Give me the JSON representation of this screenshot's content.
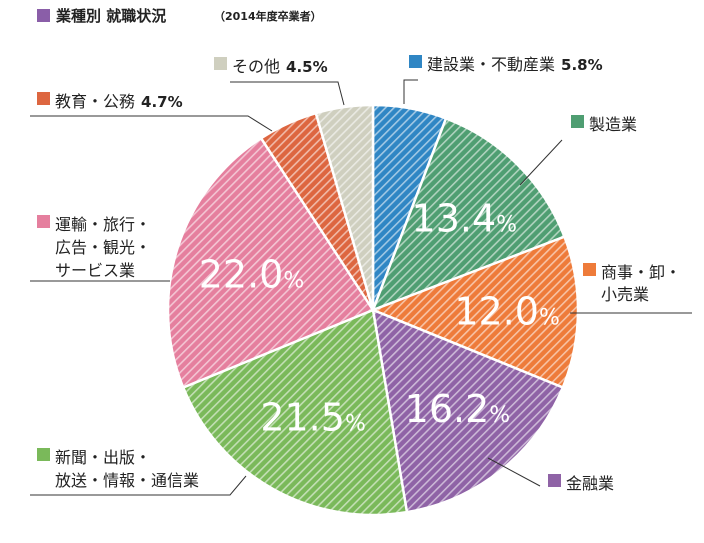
{
  "title": "業種別 就職状況",
  "subtitle": "（2014年度卒業者）",
  "colors": {
    "title_square": "#8a5ea8"
  },
  "chart_data": {
    "type": "pie",
    "title": "業種別 就職状況",
    "subtitle": "（2014年度卒業者）",
    "unit": "%",
    "start": "12 o'clock",
    "direction": "clockwise",
    "slices": [
      {
        "label_lines": [
          "建設業・不動産業"
        ],
        "value": 5.8,
        "value_text": "5.8%",
        "color": "#2f86c4",
        "big": false
      },
      {
        "label_lines": [
          "製造業"
        ],
        "value": 13.4,
        "value_text": "13.4",
        "color": "#4f9e72",
        "big": true
      },
      {
        "label_lines": [
          "商事・卸・",
          "小売業"
        ],
        "value": 12.0,
        "value_text": "12.0",
        "color": "#ee7b3a",
        "big": true
      },
      {
        "label_lines": [
          "金融業"
        ],
        "value": 16.2,
        "value_text": "16.2",
        "color": "#8f63a6",
        "big": true
      },
      {
        "label_lines": [
          "新聞・出版・",
          "放送・情報・通信業"
        ],
        "value": 21.5,
        "value_text": "21.5",
        "color": "#7ab95a",
        "big": true
      },
      {
        "label_lines": [
          "運輸・旅行・",
          "広告・観光・",
          "サービス業"
        ],
        "value": 22.0,
        "value_text": "22.0",
        "color": "#e57f9e",
        "big": true
      },
      {
        "label_lines": [
          "教育・公務"
        ],
        "value": 4.7,
        "value_text": "4.7%",
        "color": "#dd6640",
        "big": false
      },
      {
        "label_lines": [
          "その他"
        ],
        "value": 4.5,
        "value_text": "4.5%",
        "color": "#cfcfbf",
        "big": false
      }
    ],
    "big_value_suffix": "%"
  }
}
